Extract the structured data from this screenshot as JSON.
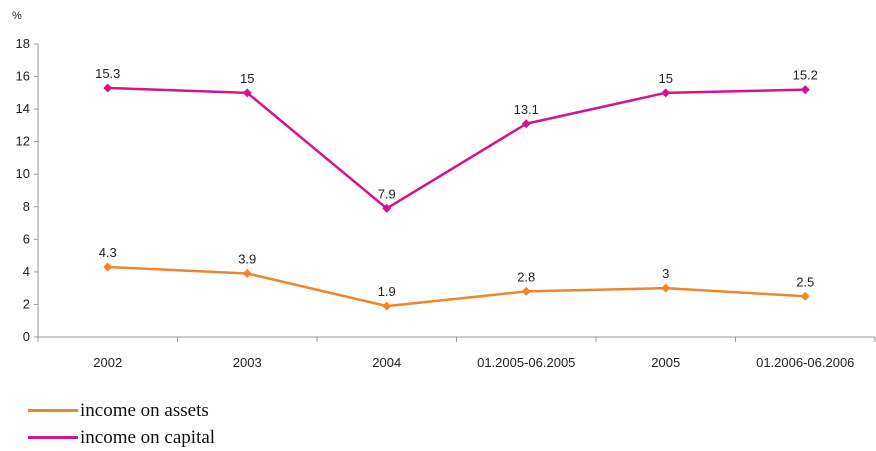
{
  "chart_data": {
    "type": "line",
    "unit_label": "%",
    "categories": [
      "2002",
      "2003",
      "2004",
      "01.2005-06.2005",
      "2005",
      "01.2006-06.2006"
    ],
    "ylim": [
      0,
      18
    ],
    "yticks": [
      0,
      2,
      4,
      6,
      8,
      10,
      12,
      14,
      16,
      18
    ],
    "grid": false,
    "legend_position": "bottom-left",
    "series": [
      {
        "name": "income on assets",
        "color": "#f0862a",
        "values": [
          4.3,
          3.9,
          1.9,
          2.8,
          3,
          2.5
        ],
        "labels": [
          "4.3",
          "3.9",
          "1.9",
          "2.8",
          "3",
          "2.5"
        ]
      },
      {
        "name": "income on capital",
        "color": "#d4148c",
        "values": [
          15.3,
          15,
          7.9,
          13.1,
          15,
          15.2
        ],
        "labels": [
          "15.3",
          "15",
          "7.9",
          "13.1",
          "15",
          "15.2"
        ]
      }
    ]
  }
}
